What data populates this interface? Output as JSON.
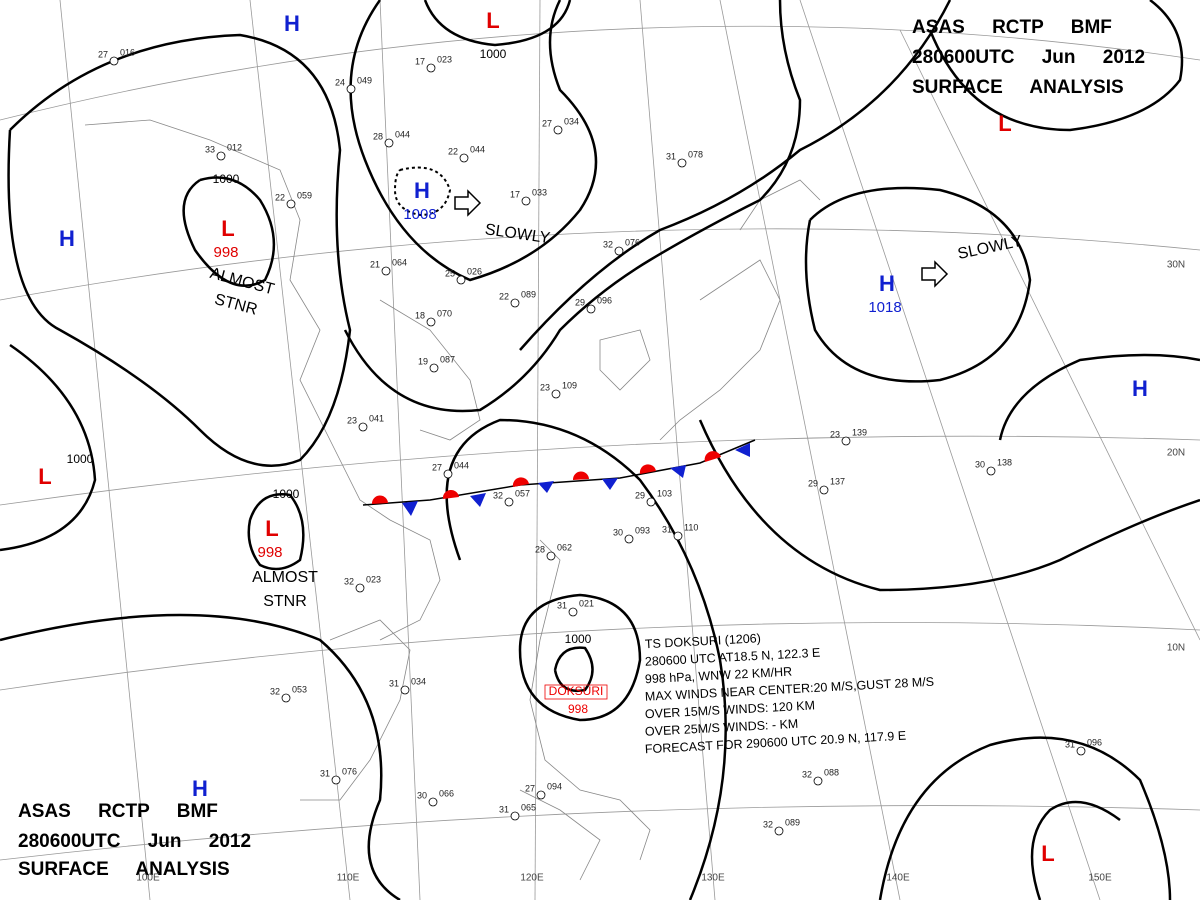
{
  "header_top": {
    "line1": "ASAS RCTP BMF",
    "line2": "280600UTC Jun 2012",
    "line3": "SURFACE ANALYSIS"
  },
  "header_bottom": {
    "line1": "ASAS RCTP BMF",
    "line2": "280600UTC Jun 2012",
    "line3": "SURFACE ANALYSIS"
  },
  "pressure_systems": [
    {
      "label": "H"
    },
    {
      "label": "L"
    },
    {
      "label": "L",
      "pressure": "998"
    },
    {
      "label": "H"
    },
    {
      "label": "H",
      "pressure": "1008"
    },
    {
      "label": "L"
    },
    {
      "label": "H",
      "pressure": "1018"
    },
    {
      "label": "H"
    },
    {
      "label": "L"
    },
    {
      "label": "L",
      "pressure": "998"
    },
    {
      "label": "H"
    },
    {
      "label": "L"
    }
  ],
  "isobar_labels": [
    "1000",
    "1000",
    "1000",
    "1000",
    "1000"
  ],
  "motions": [
    "SLOWLY",
    "SLOWLY"
  ],
  "stationary_notes": [
    [
      "ALMOST",
      "STNR"
    ],
    [
      "ALMOST",
      "STNR"
    ]
  ],
  "longitudes": [
    "100E",
    "110E",
    "120E",
    "130E",
    "140E",
    "150E"
  ],
  "latitudes": [
    "30N",
    "20N",
    "10N"
  ],
  "storm": {
    "name": "DOKSURI",
    "pressure": "998",
    "info": [
      "TS DOKSURI (1206)",
      "280600 UTC AT18.5 N, 122.3 E",
      "998 hPa, WNW 22 KM/HR",
      "MAX WINDS NEAR CENTER:20 M/S,GUST 28 M/S",
      "OVER 15M/S WINDS: 120 KM",
      "OVER 25M/S WINDS: - KM",
      "FORECAST FOR 290600 UTC 20.9 N, 117.9 E"
    ]
  },
  "stations": [
    {
      "temp": "27",
      "pressure": "016"
    },
    {
      "temp": "33",
      "pressure": "012"
    },
    {
      "temp": "22",
      "pressure": "059"
    },
    {
      "temp": "24",
      "pressure": "049"
    },
    {
      "temp": "17",
      "pressure": "023"
    },
    {
      "temp": "28",
      "pressure": "044"
    },
    {
      "temp": "22",
      "pressure": "044"
    },
    {
      "temp": "27",
      "pressure": "034"
    },
    {
      "temp": "31",
      "pressure": "078"
    },
    {
      "temp": "17",
      "pressure": "033"
    },
    {
      "temp": "32",
      "pressure": "076"
    },
    {
      "temp": "21",
      "pressure": "064"
    },
    {
      "temp": "25",
      "pressure": "026"
    },
    {
      "temp": "22",
      "pressure": "089"
    },
    {
      "temp": "29",
      "pressure": "096"
    },
    {
      "temp": "18",
      "pressure": "070"
    },
    {
      "temp": "19",
      "pressure": "087"
    },
    {
      "temp": "23",
      "pressure": "109"
    },
    {
      "temp": "23",
      "pressure": "041"
    },
    {
      "temp": "27",
      "pressure": "044"
    },
    {
      "temp": "32",
      "pressure": "057"
    },
    {
      "temp": "29",
      "pressure": "103"
    },
    {
      "temp": "30",
      "pressure": "093"
    },
    {
      "temp": "31",
      "pressure": "110"
    },
    {
      "temp": "28",
      "pressure": "062"
    },
    {
      "temp": "31",
      "pressure": "021"
    },
    {
      "temp": "32",
      "pressure": "023"
    },
    {
      "temp": "31",
      "pressure": "034"
    },
    {
      "temp": "32",
      "pressure": "053"
    },
    {
      "temp": "31",
      "pressure": "076"
    },
    {
      "temp": "30",
      "pressure": "066"
    },
    {
      "temp": "31",
      "pressure": "065"
    },
    {
      "temp": "27",
      "pressure": "094"
    },
    {
      "temp": "32",
      "pressure": "089"
    },
    {
      "temp": "29",
      "pressure": "137"
    },
    {
      "temp": "30",
      "pressure": "138"
    },
    {
      "temp": "23",
      "pressure": "139"
    },
    {
      "temp": "32",
      "pressure": "088"
    },
    {
      "temp": "31",
      "pressure": "096"
    }
  ]
}
